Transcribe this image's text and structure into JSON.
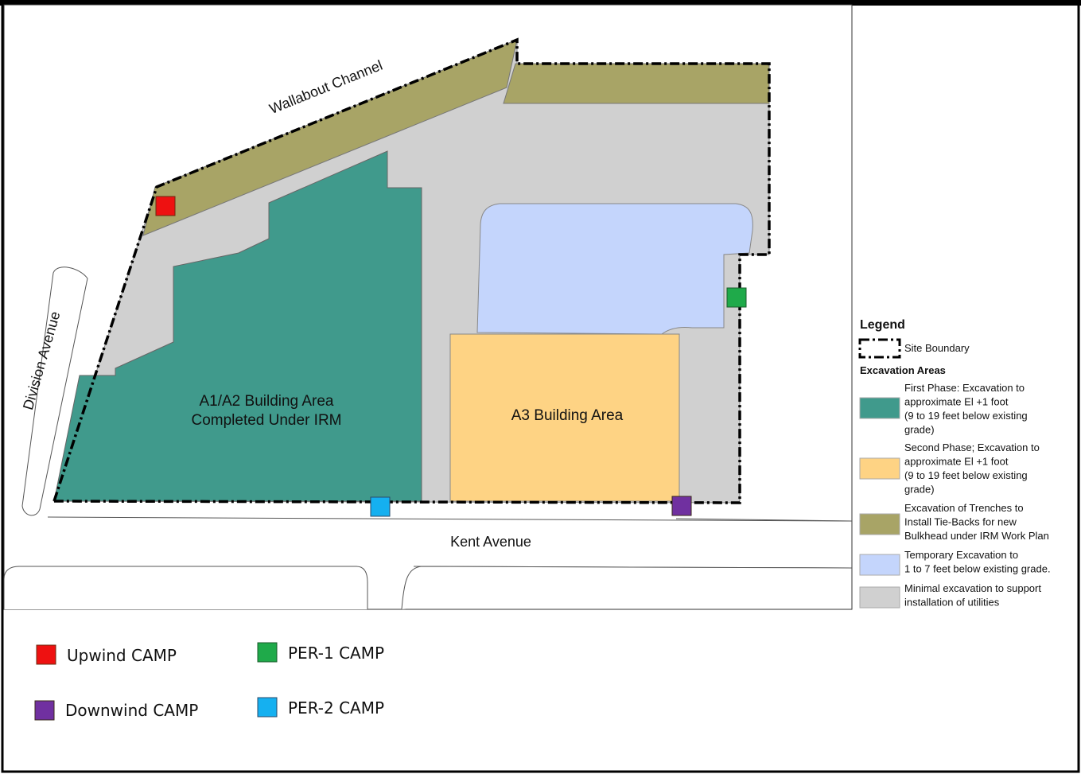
{
  "map": {
    "labels": {
      "channel": "Wallabout Channel",
      "division": "Division Avenue",
      "kent": "Kent Avenue",
      "a1a2_line1": "A1/A2 Building Area",
      "a1a2_line2": "Completed Under IRM",
      "a3": "A3 Building Area"
    },
    "colors": {
      "teal": "#409a8c",
      "yellow": "#fed384",
      "olive": "#a8a466",
      "blue": "#c4d5fc",
      "gray": "#d0d0d0",
      "red": "#ee1111",
      "green": "#1faa4a",
      "cyan": "#15b0f0",
      "purple": "#7030a0"
    }
  },
  "legend": {
    "title": "Legend",
    "site_boundary": "Site Boundary",
    "excavation_heading": "Excavation Areas",
    "items": [
      {
        "color": "#409a8c",
        "lines": [
          "First Phase: Excavation to",
          "approximate El +1 foot",
          "(9 to 19 feet below existing",
          "grade)"
        ]
      },
      {
        "color": "#fed384",
        "lines": [
          "Second Phase; Excavation to",
          "approximate El +1 foot",
          "(9 to 19 feet below existing",
          "grade)"
        ]
      },
      {
        "color": "#a8a466",
        "lines": [
          "Excavation of Trenches to",
          "Install Tie-Backs for new",
          "Bulkhead under IRM Work Plan"
        ]
      },
      {
        "color": "#c4d5fc",
        "lines": [
          "Temporary Excavation to",
          "1 to 7 feet below existing grade."
        ]
      },
      {
        "color": "#d0d0d0",
        "lines": [
          "Minimal excavation to support",
          "installation of utilities"
        ]
      }
    ]
  },
  "camp_legend": {
    "upwind": {
      "label": "Upwind CAMP",
      "color": "#ee1111",
      "icon": "red-square-icon"
    },
    "downwind": {
      "label": "Downwind CAMP",
      "color": "#7030a0",
      "icon": "purple-square-icon"
    },
    "per1": {
      "label": "PER-1 CAMP",
      "color": "#1faa4a",
      "icon": "green-square-icon"
    },
    "per2": {
      "label": "PER-2 CAMP",
      "color": "#15b0f0",
      "icon": "cyan-square-icon"
    }
  }
}
